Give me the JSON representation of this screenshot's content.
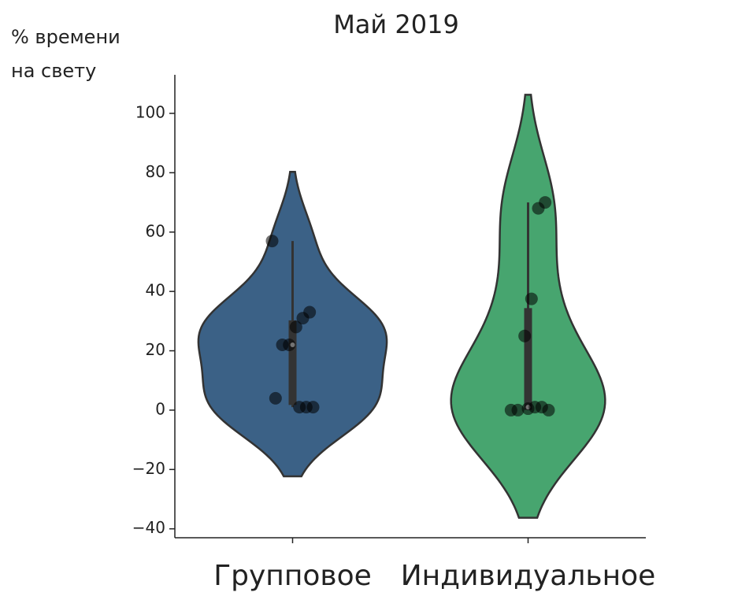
{
  "chart_data": {
    "type": "violin",
    "title": "Май 2019",
    "ylabel": [
      "% времени",
      "на свету"
    ],
    "categories": [
      "Групповое",
      "Индивидуальное"
    ],
    "series": [
      {
        "name": "Групповое",
        "color": "#3b6186",
        "values": [
          57,
          33,
          31,
          28,
          22,
          22,
          4,
          1,
          1,
          1
        ]
      },
      {
        "name": "Индивидуальное",
        "color": "#47a56f",
        "values": [
          70,
          68,
          37.5,
          25,
          0,
          0,
          0,
          1,
          1,
          0.5
        ]
      }
    ],
    "ylim": [
      -43,
      113
    ],
    "yticks": [
      {
        "value": -40,
        "label": "−40"
      },
      {
        "value": -20,
        "label": "−20"
      },
      0,
      20,
      40,
      60,
      80,
      100
    ]
  }
}
